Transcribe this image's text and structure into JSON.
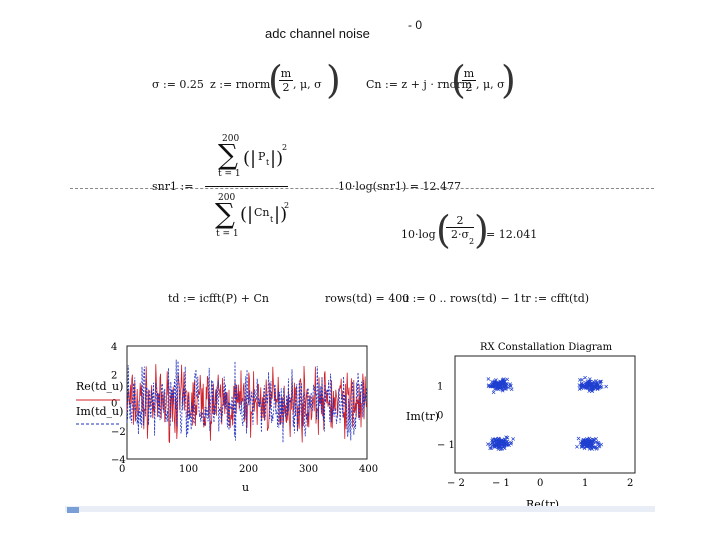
{
  "heading": "adc channel noise",
  "corner_mark": "- 0",
  "row1": {
    "sigma_def": "σ := 0.25",
    "z_def": "z := rnorm",
    "z_frac_num": "m",
    "z_frac_den": "2",
    "z_args": ", μ, σ",
    "cn_def": "Cn := z + j · rnorm",
    "cn_frac_num": "m",
    "cn_frac_den": "2",
    "cn_args": ", μ, σ"
  },
  "snr": {
    "lhs": "snr1 :=",
    "num_upper": "200",
    "num_lower": "t = 1",
    "num_term": "P",
    "num_sub": "t",
    "num_pow": "2",
    "den_upper": "200",
    "den_lower": "t = 1",
    "den_term": "Cn",
    "den_sub": "t",
    "den_pow": "2",
    "result1": "10·log(snr1) = 12.477",
    "result2_prefix": "10·log",
    "result2_num": "2",
    "result2_den": "2·σ",
    "result2_pow": "2",
    "result2_value": "= 12.041"
  },
  "row3": {
    "td_def": "td := icfft(P) + Cn",
    "rows_def": "rows(td) = 400",
    "u_def": "u := 0 .. rows(td) − 1",
    "tr_def": "tr := cfft(td)"
  },
  "chart_data": [
    {
      "type": "line",
      "title": "",
      "xlabel": "u",
      "ylabel_top": "Re(td_u)",
      "ylabel_bottom": "Im(td_u)",
      "xlim": [
        0,
        400
      ],
      "ylim": [
        -4,
        4
      ],
      "xticks": [
        "0",
        "100",
        "200",
        "300",
        "400"
      ],
      "yticks": [
        "4",
        "2",
        "0",
        "−2",
        "−4"
      ],
      "grid": false,
      "series": [
        {
          "name": "Re(td_u)",
          "color": "#d0202a",
          "style": "solid",
          "seed": 7
        },
        {
          "name": "Im(td_u)",
          "color": "#1f2fbf",
          "style": "dashed",
          "seed": 19
        }
      ],
      "n_points": 400
    },
    {
      "type": "scatter",
      "title": "RX Constallation Diagram",
      "xlabel": "Re(tr)",
      "ylabel": "Im(tr)",
      "xlim": [
        -2,
        2
      ],
      "ylim": [
        -2,
        2
      ],
      "xticks": [
        "− 2",
        "− 1",
        "0",
        "1",
        "2"
      ],
      "yticks": [
        "1",
        "0",
        "− 1"
      ],
      "marker": "x",
      "marker_color": "#1f3fd0",
      "clusters": [
        {
          "x": -1,
          "y": 1
        },
        {
          "x": 1,
          "y": 1
        },
        {
          "x": -1,
          "y": -1
        },
        {
          "x": 1,
          "y": -1
        }
      ],
      "points_per_cluster": 100,
      "spread": 0.18
    }
  ]
}
